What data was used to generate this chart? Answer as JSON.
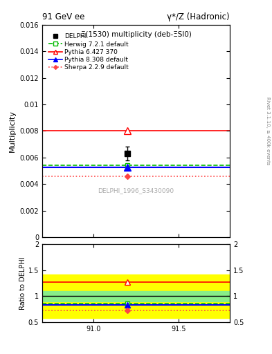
{
  "title_top": "91 GeV ee",
  "title_top_right": "γ*/Z (Hadronic)",
  "main_title": "Ξ(1530) multiplicity (deb-ΞSl0)",
  "right_label": "Rivet 3.1.10, ≥ 400k events",
  "watermark": "DELPHI_1996_S3430090",
  "ylabel_main": "Multiplicity",
  "ylabel_ratio": "Ratio to DELPHI",
  "xlim": [
    90.7,
    91.8
  ],
  "ylim_main": [
    0.0,
    0.016
  ],
  "ylim_ratio": [
    0.5,
    2.0
  ],
  "x_ticks": [
    91.0,
    91.5
  ],
  "x_data_point": 91.2,
  "delphi_value": 0.0063,
  "delphi_error": 0.0005,
  "herwig_value": 0.0054,
  "herwig_color": "#00bb00",
  "pythia6_value": 0.008,
  "pythia6_color": "#ff0000",
  "pythia8_value": 0.00525,
  "pythia8_color": "#0000ff",
  "sherpa_value": 0.0046,
  "sherpa_color": "#ff4444",
  "ref_band_inner_lo": 0.9,
  "ref_band_inner_hi": 1.1,
  "ref_band_outer_lo": 0.58,
  "ref_band_outer_hi": 1.42,
  "ratio_herwig": 0.857,
  "ratio_pythia6": 1.27,
  "ratio_pythia8": 0.833,
  "ratio_sherpa": 0.73,
  "legend_entries": [
    "DELPHI",
    "Herwig 7.2.1 default",
    "Pythia 6.427 370",
    "Pythia 8.308 default",
    "Sherpa 2.2.9 default"
  ]
}
